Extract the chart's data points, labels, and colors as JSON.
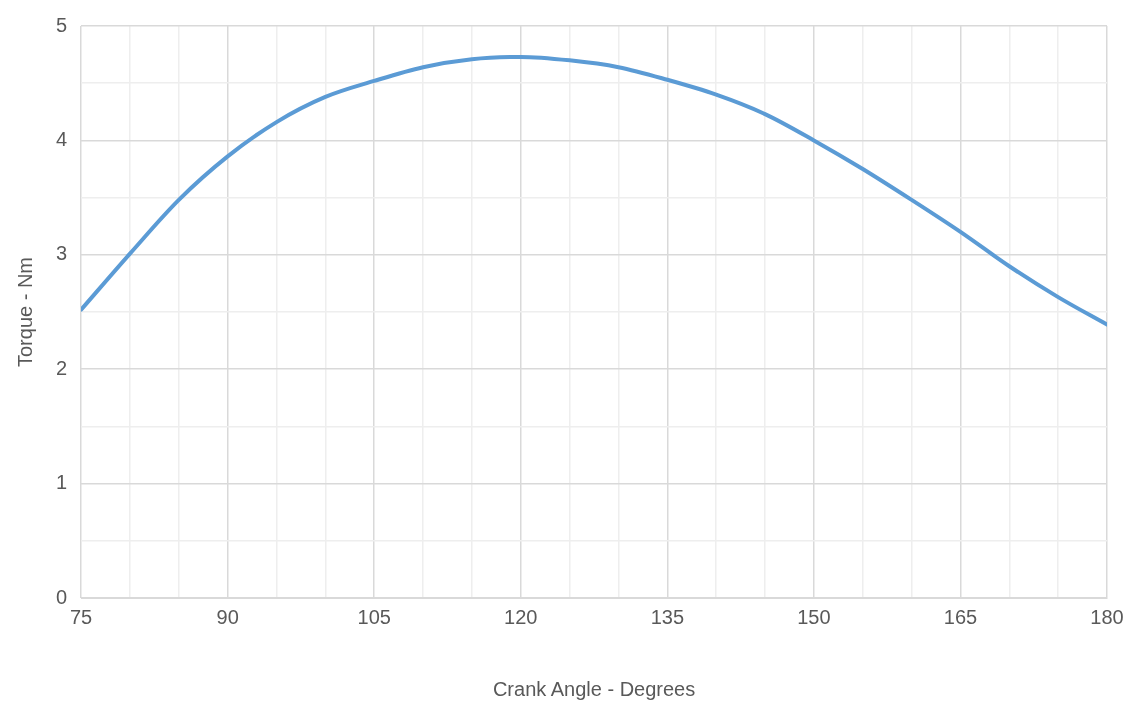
{
  "chart_data": {
    "type": "line",
    "xlabel": "Crank Angle - Degrees",
    "ylabel": "Torque - Nm",
    "x": [
      75,
      80,
      85,
      90,
      95,
      100,
      105,
      110,
      115,
      120,
      125,
      130,
      135,
      140,
      145,
      150,
      155,
      160,
      165,
      170,
      175,
      180
    ],
    "series": [
      {
        "color": "#5b9bd5",
        "values": [
          2.52,
          3.01,
          3.48,
          3.86,
          4.16,
          4.38,
          4.52,
          4.64,
          4.71,
          4.73,
          4.7,
          4.64,
          4.53,
          4.4,
          4.23,
          4.0,
          3.75,
          3.48,
          3.2,
          2.9,
          2.63,
          2.39
        ]
      }
    ],
    "xlim": [
      75,
      180
    ],
    "xticks": [
      75,
      {
        "value": 80,
        "label": null
      },
      {
        "value": 85,
        "label": null
      },
      90,
      {
        "value": 95,
        "label": null
      },
      {
        "value": 100,
        "label": null
      },
      105,
      {
        "value": 110,
        "label": null
      },
      {
        "value": 115,
        "label": null
      },
      120,
      {
        "value": 125,
        "label": null
      },
      {
        "value": 130,
        "label": null
      },
      135,
      {
        "value": 140,
        "label": null
      },
      {
        "value": 145,
        "label": null
      },
      150,
      {
        "value": 155,
        "label": null
      },
      {
        "value": 160,
        "label": null
      },
      165,
      {
        "value": 170,
        "label": null
      },
      {
        "value": 175,
        "label": null
      },
      180
    ],
    "ylim": [
      0,
      5
    ],
    "yticks": [
      0,
      {
        "value": 0.5,
        "label": null
      },
      1,
      {
        "value": 1.5,
        "label": null
      },
      2,
      {
        "value": 2.5,
        "label": null
      },
      3,
      {
        "value": 3.5,
        "label": null
      },
      4,
      {
        "value": 4.5,
        "label": null
      },
      5
    ],
    "grid": true,
    "legend": false,
    "marker": "none",
    "line_style": "solid"
  }
}
